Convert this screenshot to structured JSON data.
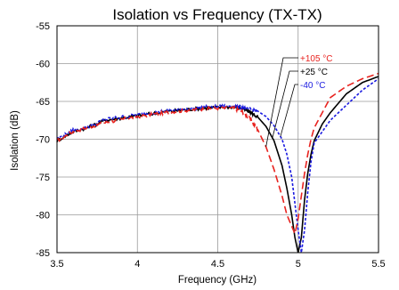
{
  "chart_data": {
    "type": "line",
    "title": "Isolation vs Frequency (TX-TX)",
    "xlabel": "Frequency (GHz)",
    "ylabel": "Isolation (dB)",
    "xlim": [
      3.5,
      5.5
    ],
    "ylim": [
      -85,
      -55
    ],
    "xticks": [
      3.5,
      4,
      4.5,
      5,
      5.5
    ],
    "xtick_labels": [
      "3.5",
      "4",
      "4.5",
      "5",
      "5.5"
    ],
    "yticks": [
      -55,
      -60,
      -65,
      -70,
      -75,
      -80,
      -85
    ],
    "ytick_labels": [
      "-55",
      "-60",
      "-65",
      "-70",
      "-75",
      "-80",
      "-85"
    ],
    "grid": true,
    "legend_position": "upper-right, with leader lines to the curves",
    "series": [
      {
        "name": "+105 °C",
        "color": "#e8231f",
        "dash": "dashed",
        "x": [
          3.5,
          3.6,
          3.7,
          3.8,
          3.9,
          4.0,
          4.1,
          4.2,
          4.3,
          4.4,
          4.5,
          4.6,
          4.65,
          4.7,
          4.75,
          4.8,
          4.85,
          4.9,
          4.93,
          4.96,
          4.98,
          5.0,
          5.02,
          5.04,
          5.06,
          5.08,
          5.1,
          5.15,
          5.2,
          5.3,
          5.4,
          5.5
        ],
        "y": [
          -70.2,
          -69.0,
          -68.4,
          -67.8,
          -67.4,
          -67.0,
          -66.7,
          -66.4,
          -66.2,
          -66.0,
          -65.9,
          -65.9,
          -66.3,
          -67.3,
          -68.8,
          -71.0,
          -74.0,
          -77.5,
          -80.0,
          -81.5,
          -82.5,
          -80.5,
          -77.5,
          -74.5,
          -72.0,
          -70.0,
          -68.5,
          -66.5,
          -64.5,
          -63.0,
          -62.0,
          -61.3
        ]
      },
      {
        "name": "+25 °C",
        "color": "#000000",
        "dash": "solid",
        "x": [
          3.5,
          3.6,
          3.7,
          3.8,
          3.9,
          4.0,
          4.1,
          4.2,
          4.3,
          4.4,
          4.5,
          4.6,
          4.65,
          4.7,
          4.75,
          4.8,
          4.85,
          4.9,
          4.93,
          4.96,
          4.98,
          5.0,
          5.02,
          5.04,
          5.06,
          5.08,
          5.1,
          5.15,
          5.2,
          5.3,
          5.4,
          5.5
        ],
        "y": [
          -70.2,
          -69.0,
          -68.4,
          -67.5,
          -67.2,
          -66.9,
          -66.6,
          -66.3,
          -66.1,
          -65.9,
          -65.8,
          -65.7,
          -65.9,
          -66.4,
          -67.1,
          -68.3,
          -70.2,
          -73.5,
          -76.5,
          -80.0,
          -83.0,
          -85.0,
          -83.0,
          -78.0,
          -74.5,
          -72.0,
          -70.2,
          -68.0,
          -66.5,
          -64.0,
          -62.5,
          -61.7
        ]
      },
      {
        "name": "-40 °C",
        "color": "#1a1ae0",
        "dash": "dotted",
        "x": [
          3.5,
          3.6,
          3.7,
          3.8,
          3.9,
          4.0,
          4.1,
          4.2,
          4.3,
          4.4,
          4.5,
          4.6,
          4.65,
          4.7,
          4.75,
          4.8,
          4.85,
          4.9,
          4.93,
          4.96,
          4.98,
          5.0,
          5.02,
          5.04,
          5.06,
          5.08,
          5.1,
          5.15,
          5.2,
          5.3,
          5.4,
          5.5
        ],
        "y": [
          -70.0,
          -68.8,
          -68.3,
          -67.4,
          -67.1,
          -66.8,
          -66.5,
          -66.2,
          -66.0,
          -65.8,
          -65.7,
          -65.6,
          -65.8,
          -66.0,
          -66.3,
          -67.0,
          -68.2,
          -70.0,
          -72.0,
          -75.0,
          -78.5,
          -82.0,
          -85.0,
          -82.0,
          -77.0,
          -73.0,
          -70.5,
          -69.0,
          -67.5,
          -65.5,
          -63.5,
          -62.0
        ]
      }
    ]
  }
}
